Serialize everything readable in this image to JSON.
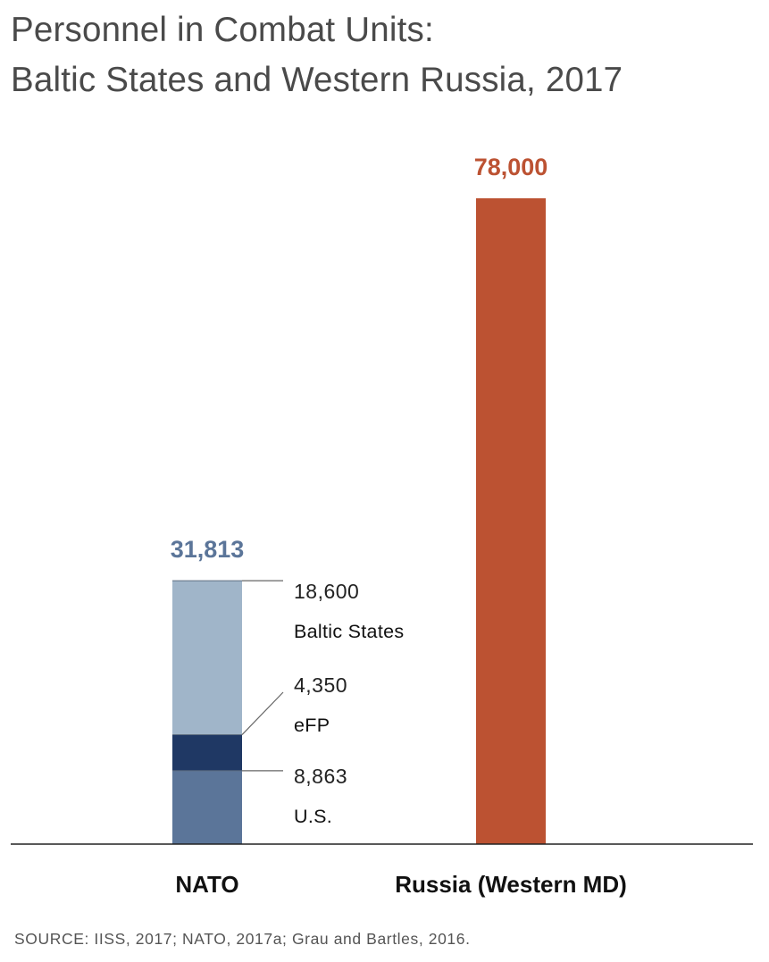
{
  "title": [
    "Personnel in Combat Units:",
    "Baltic States and Western Russia, 2017"
  ],
  "source": "SOURCE: IISS, 2017; NATO, 2017a; Grau and Bartles, 2016.",
  "colors": {
    "us": "#5b7599",
    "efp": "#1f3864",
    "baltic": "#a0b5c9",
    "russia": "#bc5232",
    "nato_total": "#5b7599",
    "russia_total": "#bc5232",
    "axis": "#222222"
  },
  "chart_data": {
    "type": "bar",
    "stacked": true,
    "categories": [
      "NATO",
      "Russia (Western MD)"
    ],
    "totals": [
      "31,813",
      "78,000"
    ],
    "ylim": [
      0,
      78000
    ],
    "grid": false,
    "series": [
      {
        "name": "U.S.",
        "label": "8,863",
        "values": [
          8863,
          null
        ]
      },
      {
        "name": "eFP",
        "label": "4,350",
        "values": [
          4350,
          null
        ]
      },
      {
        "name": "Baltic States",
        "label": "18,600",
        "values": [
          18600,
          null
        ]
      },
      {
        "values": [
          null,
          78000
        ]
      }
    ]
  }
}
